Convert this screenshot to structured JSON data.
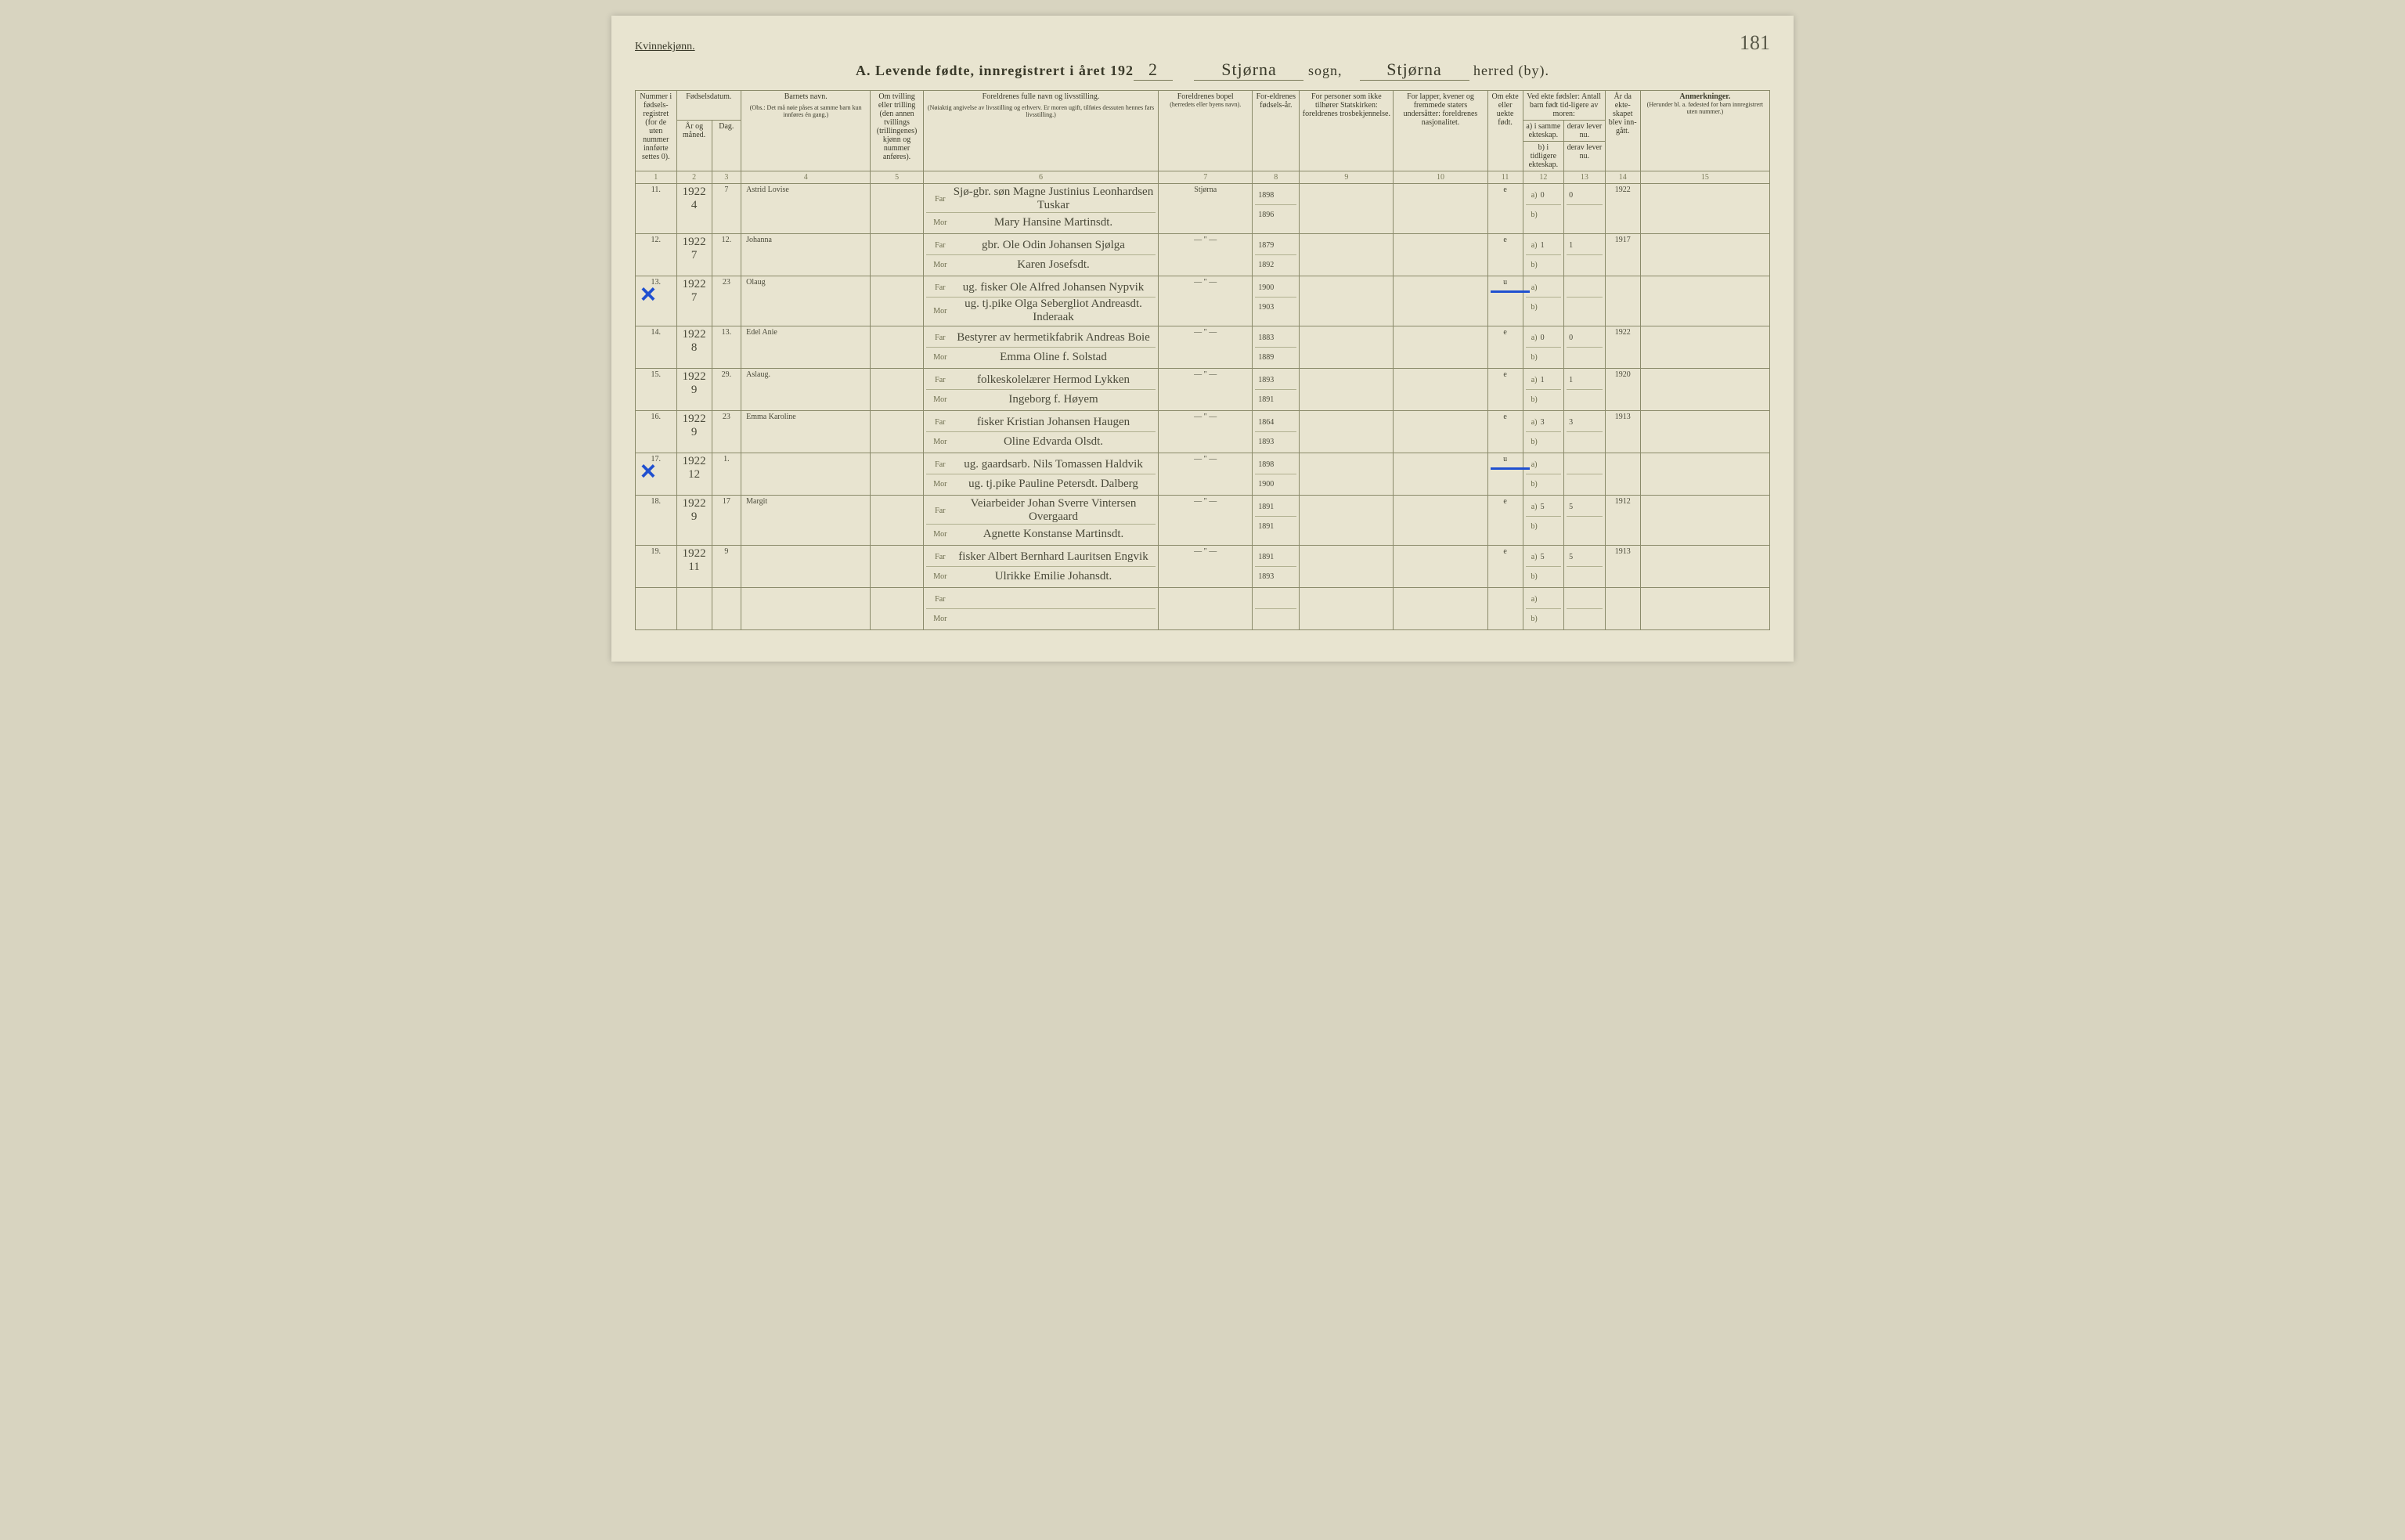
{
  "header": {
    "gender": "Kvinnekjønn.",
    "page_number": "181",
    "title_prefix": "A.   Levende fødte, innregistrert i året 192",
    "year_suffix": "2",
    "sogn_label": "sogn,",
    "sogn_value": "Stjørna",
    "herred_label": "herred (by).",
    "herred_value": "Stjørna"
  },
  "columns": {
    "c1": "Nummer i fødsels-registret (for de uten nummer innførte settes 0).",
    "c2_group": "Fødselsdatum.",
    "c2a": "År og måned.",
    "c2b": "Dag.",
    "c3": "Barnets navn.",
    "c3_note": "(Obs.: Det må nøie påses at samme barn kun innføres én gang.)",
    "c4": "Om tvilling eller trilling (den annen tvillings (trillingenes) kjønn og nummer anføres).",
    "c5": "Foreldrenes fulle navn og livsstilling.",
    "c5_note": "(Nøiaktig angivelse av livsstilling og erhverv. Er moren ugift, tilføies dessuten hennes fars livsstilling.)",
    "c6": "Foreldrenes bopel",
    "c6_note": "(herredets eller byens navn).",
    "c7": "For-eldrenes fødsels-år.",
    "c8": "For personer som ikke tilhører Statskirken: foreldrenes trosbekjennelse.",
    "c9": "For lapper, kvener og fremmede staters undersåtter: foreldrenes nasjonalitet.",
    "c10": "Om ekte eller uekte født.",
    "c11_group": "Ved ekte fødsler: Antall barn født tid-ligere av moren:",
    "c11a": "a) i samme ekteskap.",
    "c11b": "b) i tidligere ekteskap.",
    "c11c": "derav lever nu.",
    "c11d": "derav lever nu.",
    "c12": "År da ekte-skapet blev inn-gått.",
    "c13": "Anmerkninger.",
    "c13_note": "(Herunder bl. a. fødested for barn innregistrert uten nummer.)",
    "far": "Far",
    "mor": "Mor",
    "a": "a)",
    "b": "b)"
  },
  "colnums": [
    "1",
    "2",
    "3",
    "4",
    "5",
    "6",
    "7",
    "8",
    "9",
    "10",
    "11",
    "12",
    "13",
    "14",
    "15"
  ],
  "rows": [
    {
      "num": "11.",
      "year_month": "1922\n4",
      "day": "7",
      "child": "Astrid Lovise",
      "twin": "",
      "father_occ": "Sjø-gbr. søn",
      "father": "Magne Justinius Leonhardsen Tuskar",
      "mother": "Mary Hansine Martinsdt.",
      "residence": "Stjørna",
      "father_by": "1898",
      "mother_by": "1896",
      "legit": "e",
      "prev_a": "0",
      "prev_a_live": "0",
      "marriage_year": "1922",
      "x": false,
      "u_strike": false
    },
    {
      "num": "12.",
      "year_month": "1922\n7",
      "day": "12.",
      "child": "Johanna",
      "twin": "",
      "father_occ": "gbr.",
      "father": "Ole Odin Johansen Sjølga",
      "mother": "Karen Josefsdt.",
      "residence": "— \" —",
      "father_by": "1879",
      "mother_by": "1892",
      "legit": "e",
      "prev_a": "1",
      "prev_a_live": "1",
      "marriage_year": "1917",
      "x": false,
      "u_strike": false
    },
    {
      "num": "13.",
      "year_month": "1922\n7",
      "day": "23",
      "child": "Olaug",
      "twin": "",
      "father_occ": "ug. fisker",
      "father": "Ole Alfred Johansen Nypvik",
      "mother": "ug. tj.pike Olga Sebergliot Andreasdt. Inderaak",
      "residence": "— \" —",
      "father_by": "1900",
      "mother_by": "1903",
      "legit": "u",
      "prev_a": "",
      "prev_a_live": "",
      "marriage_year": "",
      "x": true,
      "u_strike": true
    },
    {
      "num": "14.",
      "year_month": "1922\n8",
      "day": "13.",
      "child": "Edel Anie",
      "twin": "",
      "father_occ": "Bestyrer av hermetikfabrik",
      "father": "Andreas Boie",
      "mother": "Emma Oline f. Solstad",
      "residence": "— \" —",
      "father_by": "1883",
      "mother_by": "1889",
      "legit": "e",
      "prev_a": "0",
      "prev_a_live": "0",
      "marriage_year": "1922",
      "x": false,
      "u_strike": false
    },
    {
      "num": "15.",
      "year_month": "1922\n9",
      "day": "29.",
      "child": "Aslaug.",
      "twin": "",
      "father_occ": "folkeskolelærer",
      "father": "Hermod Lykken",
      "mother": "Ingeborg f. Høyem",
      "residence": "— \" —",
      "father_by": "1893",
      "mother_by": "1891",
      "legit": "e",
      "prev_a": "1",
      "prev_a_live": "1",
      "marriage_year": "1920",
      "x": false,
      "u_strike": false
    },
    {
      "num": "16.",
      "year_month": "1922\n9",
      "day": "23",
      "child": "Emma Karoline",
      "twin": "",
      "father_occ": "fisker",
      "father": "Kristian Johansen Haugen",
      "mother": "Oline Edvarda Olsdt.",
      "residence": "— \" —",
      "father_by": "1864",
      "mother_by": "1893",
      "legit": "e",
      "prev_a": "3",
      "prev_a_live": "3",
      "marriage_year": "1913",
      "x": false,
      "u_strike": false
    },
    {
      "num": "17.",
      "year_month": "1922\n12",
      "day": "1.",
      "child": "",
      "twin": "",
      "father_occ": "ug. gaardsarb.",
      "father": "Nils Tomassen Haldvik",
      "mother": "ug. tj.pike Pauline Petersdt. Dalberg",
      "residence": "— \" —",
      "father_by": "1898",
      "mother_by": "1900",
      "legit": "u",
      "prev_a": "",
      "prev_a_live": "",
      "marriage_year": "",
      "x": true,
      "u_strike": true
    },
    {
      "num": "18.",
      "year_month": "1922\n9",
      "day": "17",
      "child": "Margit",
      "twin": "",
      "father_occ": "Veiarbeider",
      "father": "Johan Sverre Vintersen Overgaard",
      "mother": "Agnette Konstanse Martinsdt.",
      "residence": "— \" —",
      "father_by": "1891",
      "mother_by": "1891",
      "legit": "e",
      "prev_a": "5",
      "prev_a_live": "5",
      "marriage_year": "1912",
      "x": false,
      "u_strike": false
    },
    {
      "num": "19.",
      "year_month": "1922\n11",
      "day": "9",
      "child": "",
      "twin": "",
      "father_occ": "fisker",
      "father": "Albert Bernhard Lauritsen Engvik",
      "mother": "Ulrikke Emilie Johansdt.",
      "residence": "— \" —",
      "father_by": "1891",
      "mother_by": "1893",
      "legit": "e",
      "prev_a": "5",
      "prev_a_live": "5",
      "marriage_year": "1913",
      "x": false,
      "u_strike": false
    },
    {
      "num": "",
      "year_month": "",
      "day": "",
      "child": "",
      "twin": "",
      "father_occ": "",
      "father": "",
      "mother": "",
      "residence": "",
      "father_by": "",
      "mother_by": "",
      "legit": "",
      "prev_a": "",
      "prev_a_live": "",
      "marriage_year": "",
      "x": false,
      "u_strike": false
    }
  ],
  "styling": {
    "page_bg": "#e8e4d0",
    "border_color": "#8a8a6a",
    "text_color": "#3a3a2a",
    "handwriting_color": "#4a4a3a",
    "blue_mark": "#2050d0",
    "header_font_size_pt": 10,
    "body_font_size_pt": 18,
    "handwriting_font": "Brush Script MT"
  }
}
